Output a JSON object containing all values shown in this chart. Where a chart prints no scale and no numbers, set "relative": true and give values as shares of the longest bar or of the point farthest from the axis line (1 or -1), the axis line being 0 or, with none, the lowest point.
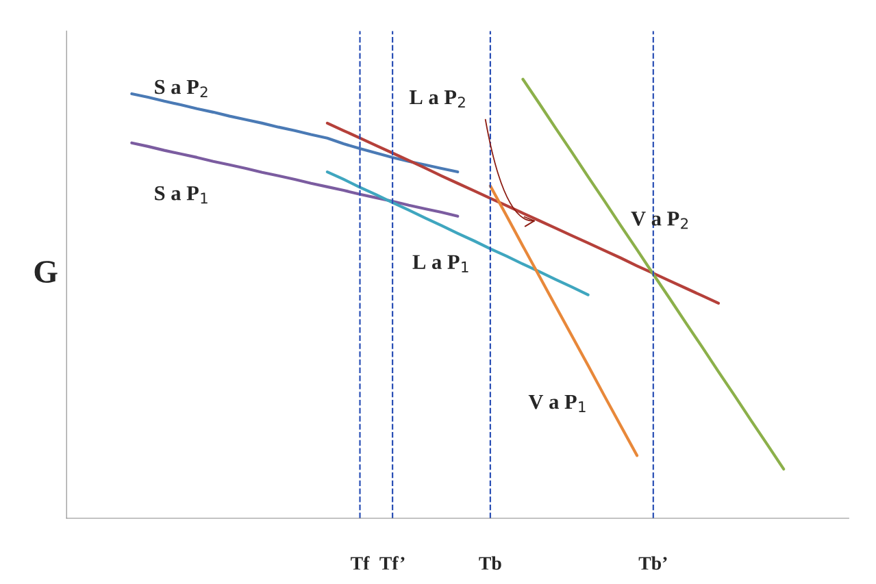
{
  "chart_data": {
    "type": "line",
    "relative": true,
    "ylabel": "G",
    "categories": [
      null,
      null,
      null,
      null,
      null,
      null,
      null,
      null,
      null,
      null,
      null,
      null,
      null,
      null,
      null,
      null,
      null,
      null,
      "Tf",
      null,
      "Tf’",
      null,
      null,
      null,
      null,
      null,
      "Tb",
      null,
      null,
      null,
      null,
      null,
      null,
      null,
      null,
      null,
      "Tb’",
      null,
      null,
      null,
      null,
      null,
      null,
      null,
      null,
      null,
      null,
      null,
      null
    ],
    "series": [
      {
        "color": "#4a7ab5",
        "values": [
          null,
          null,
          null,
          null,
          0.967,
          0.959,
          0.95,
          0.942,
          0.933,
          0.925,
          0.916,
          0.908,
          0.9,
          0.891,
          0.883,
          0.874,
          0.866,
          0.853,
          0.842,
          0.832,
          0.822,
          0.813,
          0.805,
          0.797,
          0.789,
          null,
          null,
          null,
          null,
          null,
          null,
          null,
          null,
          null,
          null,
          null,
          null,
          null,
          null,
          null,
          null,
          null,
          null,
          null,
          null,
          null,
          null,
          null,
          null
        ]
      },
      {
        "color": "#7b5ca0",
        "values": [
          null,
          null,
          null,
          null,
          0.855,
          0.847,
          0.838,
          0.83,
          0.822,
          0.813,
          0.805,
          0.797,
          0.788,
          0.78,
          0.772,
          0.763,
          0.755,
          0.747,
          0.738,
          0.73,
          0.722,
          0.713,
          0.705,
          0.697,
          0.688,
          null,
          null,
          null,
          null,
          null,
          null,
          null,
          null,
          null,
          null,
          null,
          null,
          null,
          null,
          null,
          null,
          null,
          null,
          null,
          null,
          null,
          null,
          null,
          null
        ]
      },
      {
        "color": "#b5403a",
        "values": [
          null,
          null,
          null,
          null,
          null,
          null,
          null,
          null,
          null,
          null,
          null,
          null,
          null,
          null,
          null,
          null,
          0.9,
          0.883,
          0.866,
          0.849,
          0.832,
          0.815,
          0.798,
          0.78,
          0.763,
          0.746,
          0.729,
          0.712,
          0.695,
          0.678,
          0.661,
          0.644,
          0.627,
          0.61,
          0.593,
          0.575,
          0.558,
          0.541,
          0.524,
          0.507,
          0.49,
          null,
          null,
          null,
          null,
          null,
          null,
          null,
          null
        ]
      },
      {
        "color": "#3fa6bf",
        "values": [
          null,
          null,
          null,
          null,
          null,
          null,
          null,
          null,
          null,
          null,
          null,
          null,
          null,
          null,
          null,
          null,
          0.789,
          0.772,
          0.754,
          0.737,
          0.719,
          0.702,
          0.684,
          0.667,
          0.649,
          0.632,
          0.614,
          0.597,
          0.579,
          0.562,
          0.544,
          0.527,
          0.509,
          null,
          null,
          null,
          null,
          null,
          null,
          null,
          null,
          null,
          null,
          null,
          null,
          null,
          null,
          null,
          null
        ]
      },
      {
        "color": "#e8883a",
        "values": [
          null,
          null,
          null,
          null,
          null,
          null,
          null,
          null,
          null,
          null,
          null,
          null,
          null,
          null,
          null,
          null,
          null,
          null,
          null,
          null,
          null,
          null,
          null,
          null,
          null,
          null,
          0.757,
          0.689,
          0.62,
          0.552,
          0.484,
          0.416,
          0.348,
          0.279,
          0.211,
          0.143,
          null,
          null,
          null,
          null,
          null,
          null,
          null,
          null,
          null,
          null,
          null,
          null,
          null
        ]
      },
      {
        "color": "#8cb04a",
        "values": [
          null,
          null,
          null,
          null,
          null,
          null,
          null,
          null,
          null,
          null,
          null,
          null,
          null,
          null,
          null,
          null,
          null,
          null,
          null,
          null,
          null,
          null,
          null,
          null,
          null,
          null,
          null,
          null,
          1.0,
          0.945,
          0.889,
          0.834,
          0.778,
          0.723,
          0.667,
          0.612,
          0.556,
          0.501,
          0.445,
          0.39,
          0.334,
          0.279,
          0.223,
          0.168,
          0.112,
          null,
          null,
          null,
          null
        ]
      }
    ],
    "ref_lines": [
      {
        "axis": "x",
        "value": "Tf",
        "color": "#2a4fb5",
        "line_style": "dashed"
      },
      {
        "axis": "x",
        "value": "Tf’",
        "color": "#2a4fb5",
        "line_style": "dashed"
      },
      {
        "axis": "x",
        "value": "Tb",
        "color": "#2a4fb5",
        "line_style": "dashed"
      },
      {
        "axis": "x",
        "value": "Tb’",
        "color": "#2a4fb5",
        "line_style": "dashed"
      }
    ],
    "annotations": [
      "S a P$_{2}$",
      "S a P$_{1}$",
      "L a P$_{2}$",
      "L a P$_{1}$",
      "V a P$_{1}$",
      "V a P$_{2}$"
    ],
    "grid": false,
    "legend": false,
    "marker": "none",
    "line_style": "solid"
  }
}
